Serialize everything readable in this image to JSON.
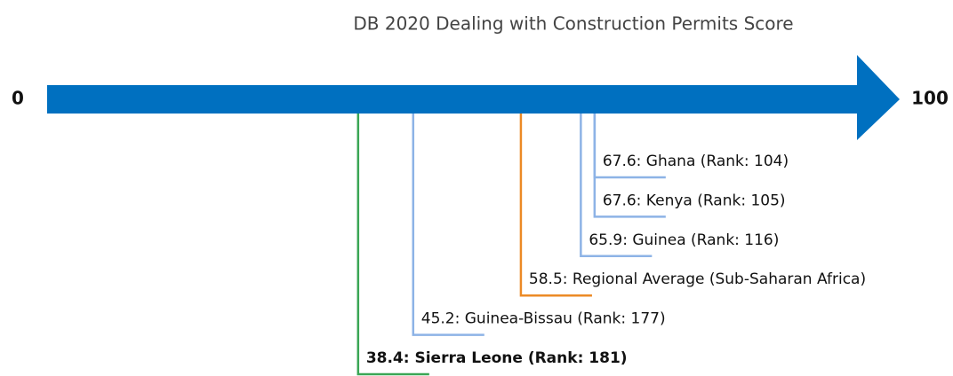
{
  "chart_data": {
    "type": "number_line",
    "title": "DB 2020 Dealing with Construction Permits Score",
    "xlim": [
      0,
      100
    ],
    "xticks": [
      0,
      100
    ],
    "arrow_color": "#0070c0",
    "categories": [
      "Ghana",
      "Kenya",
      "Guinea",
      "Regional Average (Sub-Saharan Africa)",
      "Guinea-Bissau",
      "Sierra Leone"
    ],
    "values": [
      67.6,
      67.6,
      65.9,
      58.5,
      45.2,
      38.4
    ],
    "value_labels": [
      "67.6: Ghana (Rank: 104)",
      "67.6: Kenya (Rank: 105)",
      "65.9: Guinea (Rank: 116)",
      "58.5: Regional Average (Sub-Saharan Africa)",
      "45.2: Guinea-Bissau (Rank: 177)",
      "38.4: Sierra Leone (Rank: 181)"
    ],
    "colors": [
      "#8db3e6",
      "#8db3e6",
      "#8db3e6",
      "#ec8a26",
      "#8db3e6",
      "#3aa655"
    ],
    "bold": [
      false,
      false,
      false,
      false,
      false,
      true
    ]
  }
}
